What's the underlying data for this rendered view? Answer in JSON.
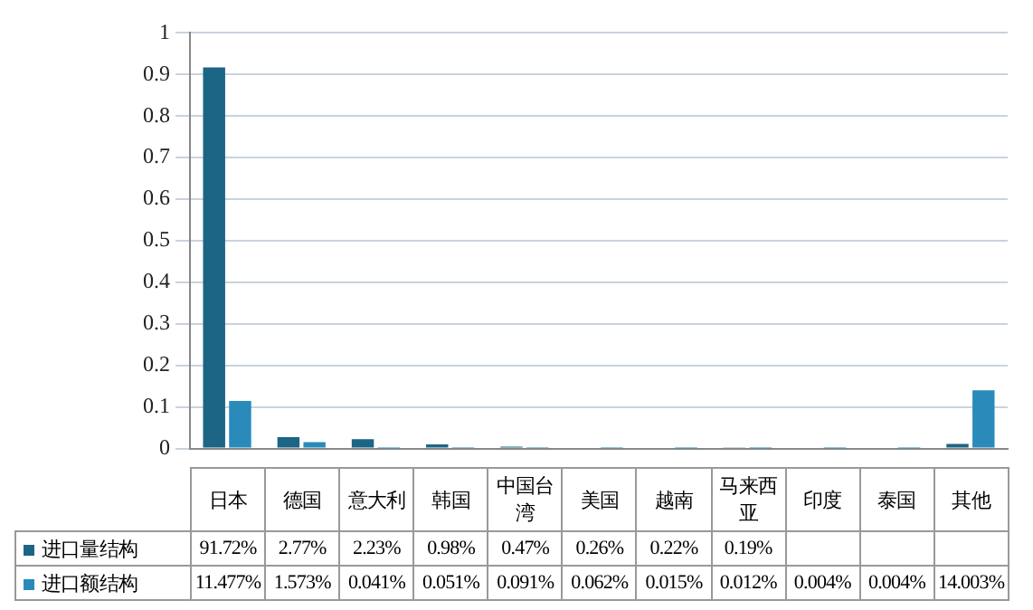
{
  "chart_data": {
    "type": "bar",
    "categories": [
      "日本",
      "德国",
      "意大利",
      "韩国",
      "中国台湾",
      "美国",
      "越南",
      "马来西亚",
      "印度",
      "泰国",
      "其他"
    ],
    "series": [
      {
        "name": "进口量结构",
        "color": "#1c6585",
        "values": [
          0.9172,
          0.0277,
          0.0223,
          0.0098,
          0.0047,
          0.0026,
          0.0022,
          0.0019,
          0,
          0,
          0.011
        ],
        "value_labels": [
          "91.72%",
          "2.77%",
          "2.23%",
          "0.98%",
          "0.47%",
          "0.26%",
          "0.22%",
          "0.19%",
          null,
          null,
          null
        ]
      },
      {
        "name": "进口额结构",
        "color": "#2a8bba",
        "values": [
          0.11477,
          0.01573,
          0.00041,
          0.00051,
          0.00091,
          0.00062,
          0.00015,
          0.00012,
          4e-05,
          4e-05,
          0.14003
        ],
        "value_labels": [
          "11.477%",
          "1.573%",
          "0.041%",
          "0.051%",
          "0.091%",
          "0.062%",
          "0.015%",
          "0.012%",
          "0.004%",
          "0.004%",
          "14.003%"
        ]
      }
    ],
    "ylim": [
      0,
      1
    ],
    "yticks": [
      0,
      0.1,
      0.2,
      0.3,
      0.4,
      0.5,
      0.6,
      0.7,
      0.8,
      0.9,
      1
    ],
    "grid": "y",
    "legend": "bottom"
  }
}
